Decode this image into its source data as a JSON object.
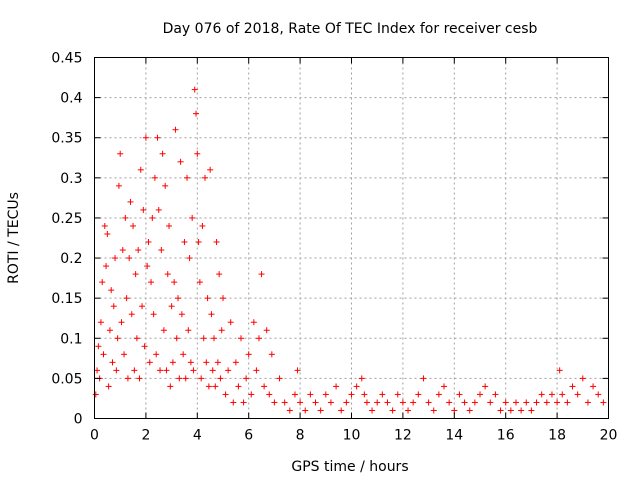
{
  "chart_data": {
    "type": "scatter",
    "title": "Day 076 of 2018, Rate Of TEC Index for receiver cesb",
    "xlabel": "GPS time / hours",
    "ylabel": "ROTI / TECUs",
    "xlim": [
      0,
      20
    ],
    "ylim": [
      0,
      0.45
    ],
    "xticks": [
      0,
      2,
      4,
      6,
      8,
      10,
      12,
      14,
      16,
      18,
      20
    ],
    "yticks": [
      0,
      0.05,
      0.1,
      0.15,
      0.2,
      0.25,
      0.3,
      0.35,
      0.4,
      0.45
    ],
    "xtick_labels": [
      "0",
      "2",
      "4",
      "6",
      "8",
      "10",
      "12",
      "14",
      "16",
      "18",
      "20"
    ],
    "ytick_labels": [
      "0",
      "0.05",
      "0.1",
      "0.15",
      "0.2",
      "0.25",
      "0.3",
      "0.35",
      "0.4",
      "0.45"
    ],
    "grid": true,
    "marker": "+",
    "color": "#ff0000",
    "series": [
      {
        "name": "ROTI",
        "points": [
          [
            0.05,
            0.03
          ],
          [
            0.1,
            0.06
          ],
          [
            0.15,
            0.09
          ],
          [
            0.2,
            0.05
          ],
          [
            0.25,
            0.12
          ],
          [
            0.3,
            0.17
          ],
          [
            0.35,
            0.08
          ],
          [
            0.4,
            0.24
          ],
          [
            0.45,
            0.19
          ],
          [
            0.5,
            0.23
          ],
          [
            0.55,
            0.04
          ],
          [
            0.6,
            0.11
          ],
          [
            0.65,
            0.16
          ],
          [
            0.7,
            0.07
          ],
          [
            0.75,
            0.14
          ],
          [
            0.8,
            0.2
          ],
          [
            0.85,
            0.06
          ],
          [
            0.9,
            0.1
          ],
          [
            0.95,
            0.29
          ],
          [
            1.0,
            0.33
          ],
          [
            1.05,
            0.12
          ],
          [
            1.1,
            0.21
          ],
          [
            1.15,
            0.08
          ],
          [
            1.2,
            0.25
          ],
          [
            1.25,
            0.15
          ],
          [
            1.3,
            0.05
          ],
          [
            1.35,
            0.2
          ],
          [
            1.4,
            0.27
          ],
          [
            1.45,
            0.13
          ],
          [
            1.5,
            0.24
          ],
          [
            1.55,
            0.06
          ],
          [
            1.6,
            0.18
          ],
          [
            1.65,
            0.1
          ],
          [
            1.7,
            0.21
          ],
          [
            1.75,
            0.05
          ],
          [
            1.8,
            0.31
          ],
          [
            1.85,
            0.14
          ],
          [
            1.9,
            0.26
          ],
          [
            1.95,
            0.09
          ],
          [
            2.0,
            0.35
          ],
          [
            2.05,
            0.19
          ],
          [
            2.1,
            0.22
          ],
          [
            2.15,
            0.07
          ],
          [
            2.2,
            0.17
          ],
          [
            2.25,
            0.25
          ],
          [
            2.3,
            0.13
          ],
          [
            2.35,
            0.3
          ],
          [
            2.4,
            0.08
          ],
          [
            2.45,
            0.35
          ],
          [
            2.5,
            0.26
          ],
          [
            2.55,
            0.06
          ],
          [
            2.6,
            0.21
          ],
          [
            2.65,
            0.33
          ],
          [
            2.7,
            0.11
          ],
          [
            2.75,
            0.29
          ],
          [
            2.8,
            0.06
          ],
          [
            2.85,
            0.18
          ],
          [
            2.9,
            0.24
          ],
          [
            2.95,
            0.04
          ],
          [
            3.0,
            0.14
          ],
          [
            3.05,
            0.07
          ],
          [
            3.1,
            0.17
          ],
          [
            3.15,
            0.36
          ],
          [
            3.2,
            0.1
          ],
          [
            3.25,
            0.15
          ],
          [
            3.3,
            0.05
          ],
          [
            3.35,
            0.32
          ],
          [
            3.4,
            0.13
          ],
          [
            3.45,
            0.08
          ],
          [
            3.5,
            0.22
          ],
          [
            3.55,
            0.05
          ],
          [
            3.6,
            0.3
          ],
          [
            3.65,
            0.11
          ],
          [
            3.7,
            0.2
          ],
          [
            3.75,
            0.07
          ],
          [
            3.8,
            0.25
          ],
          [
            3.85,
            0.06
          ],
          [
            3.9,
            0.41
          ],
          [
            3.95,
            0.38
          ],
          [
            4.0,
            0.33
          ],
          [
            4.05,
            0.22
          ],
          [
            4.1,
            0.17
          ],
          [
            4.15,
            0.05
          ],
          [
            4.2,
            0.24
          ],
          [
            4.25,
            0.1
          ],
          [
            4.3,
            0.3
          ],
          [
            4.35,
            0.07
          ],
          [
            4.4,
            0.15
          ],
          [
            4.45,
            0.04
          ],
          [
            4.5,
            0.31
          ],
          [
            4.55,
            0.13
          ],
          [
            4.6,
            0.06
          ],
          [
            4.65,
            0.1
          ],
          [
            4.7,
            0.04
          ],
          [
            4.75,
            0.22
          ],
          [
            4.8,
            0.07
          ],
          [
            4.85,
            0.18
          ],
          [
            4.9,
            0.05
          ],
          [
            4.95,
            0.11
          ],
          [
            5.0,
            0.15
          ],
          [
            5.1,
            0.03
          ],
          [
            5.2,
            0.06
          ],
          [
            5.3,
            0.12
          ],
          [
            5.4,
            0.02
          ],
          [
            5.5,
            0.07
          ],
          [
            5.6,
            0.04
          ],
          [
            5.7,
            0.1
          ],
          [
            5.8,
            0.02
          ],
          [
            5.9,
            0.05
          ],
          [
            6.0,
            0.08
          ],
          [
            6.1,
            0.03
          ],
          [
            6.2,
            0.12
          ],
          [
            6.3,
            0.06
          ],
          [
            6.4,
            0.1
          ],
          [
            6.5,
            0.18
          ],
          [
            6.6,
            0.04
          ],
          [
            6.7,
            0.11
          ],
          [
            6.8,
            0.03
          ],
          [
            6.9,
            0.08
          ],
          [
            7.0,
            0.02
          ],
          [
            7.2,
            0.05
          ],
          [
            7.4,
            0.02
          ],
          [
            7.6,
            0.01
          ],
          [
            7.8,
            0.03
          ],
          [
            7.9,
            0.06
          ],
          [
            8.0,
            0.02
          ],
          [
            8.2,
            0.01
          ],
          [
            8.4,
            0.03
          ],
          [
            8.6,
            0.02
          ],
          [
            8.8,
            0.01
          ],
          [
            9.0,
            0.03
          ],
          [
            9.2,
            0.02
          ],
          [
            9.4,
            0.04
          ],
          [
            9.6,
            0.01
          ],
          [
            9.8,
            0.02
          ],
          [
            10.0,
            0.03
          ],
          [
            10.2,
            0.04
          ],
          [
            10.4,
            0.05
          ],
          [
            10.5,
            0.03
          ],
          [
            10.6,
            0.02
          ],
          [
            10.8,
            0.01
          ],
          [
            11.0,
            0.02
          ],
          [
            11.2,
            0.03
          ],
          [
            11.4,
            0.02
          ],
          [
            11.6,
            0.01
          ],
          [
            11.8,
            0.03
          ],
          [
            12.0,
            0.02
          ],
          [
            12.2,
            0.01
          ],
          [
            12.4,
            0.02
          ],
          [
            12.6,
            0.03
          ],
          [
            12.8,
            0.05
          ],
          [
            13.0,
            0.02
          ],
          [
            13.2,
            0.01
          ],
          [
            13.4,
            0.03
          ],
          [
            13.6,
            0.04
          ],
          [
            13.8,
            0.02
          ],
          [
            14.0,
            0.01
          ],
          [
            14.2,
            0.03
          ],
          [
            14.4,
            0.02
          ],
          [
            14.6,
            0.01
          ],
          [
            14.8,
            0.02
          ],
          [
            15.0,
            0.03
          ],
          [
            15.2,
            0.04
          ],
          [
            15.4,
            0.02
          ],
          [
            15.6,
            0.03
          ],
          [
            15.8,
            0.01
          ],
          [
            16.0,
            0.02
          ],
          [
            16.2,
            0.01
          ],
          [
            16.4,
            0.02
          ],
          [
            16.6,
            0.01
          ],
          [
            16.8,
            0.02
          ],
          [
            17.0,
            0.01
          ],
          [
            17.2,
            0.02
          ],
          [
            17.4,
            0.03
          ],
          [
            17.6,
            0.02
          ],
          [
            17.8,
            0.03
          ],
          [
            18.0,
            0.02
          ],
          [
            18.1,
            0.06
          ],
          [
            18.2,
            0.03
          ],
          [
            18.4,
            0.02
          ],
          [
            18.6,
            0.04
          ],
          [
            18.8,
            0.03
          ],
          [
            19.0,
            0.05
          ],
          [
            19.2,
            0.02
          ],
          [
            19.4,
            0.04
          ],
          [
            19.6,
            0.03
          ],
          [
            19.8,
            0.02
          ]
        ]
      }
    ]
  }
}
